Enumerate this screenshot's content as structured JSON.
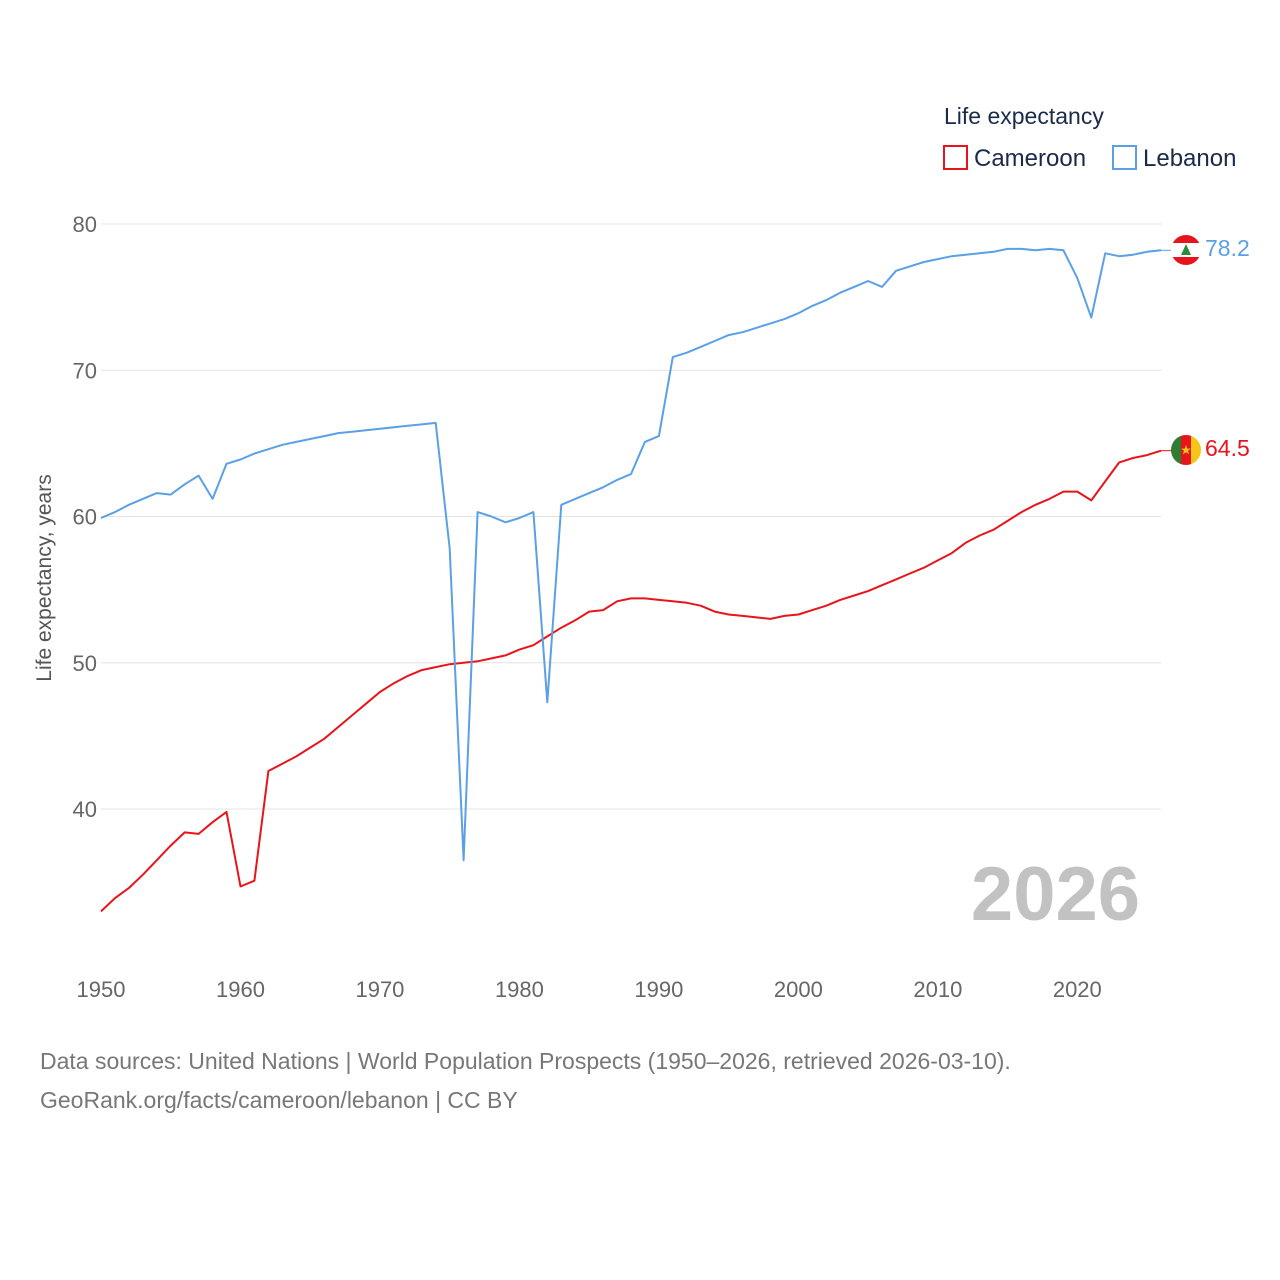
{
  "chart_data": {
    "type": "line",
    "title": "",
    "xlabel": "",
    "ylabel": "Life expectancy, years",
    "legend_title": "Life expectancy",
    "legend_position": "top-right",
    "xlim": [
      1950,
      2026
    ],
    "ylim": [
      32,
      82
    ],
    "x_ticks": [
      1950,
      1960,
      1970,
      1980,
      1990,
      2000,
      2010,
      2020
    ],
    "y_ticks": [
      40,
      50,
      60,
      70,
      80
    ],
    "grid": true,
    "watermark_year": "2026",
    "x": [
      1950,
      1951,
      1952,
      1953,
      1954,
      1955,
      1956,
      1957,
      1958,
      1959,
      1960,
      1961,
      1962,
      1963,
      1964,
      1965,
      1966,
      1967,
      1968,
      1969,
      1970,
      1971,
      1972,
      1973,
      1974,
      1975,
      1976,
      1977,
      1978,
      1979,
      1980,
      1981,
      1982,
      1983,
      1984,
      1985,
      1986,
      1987,
      1988,
      1989,
      1990,
      1991,
      1992,
      1993,
      1994,
      1995,
      1996,
      1997,
      1998,
      1999,
      2000,
      2001,
      2002,
      2003,
      2004,
      2005,
      2006,
      2007,
      2008,
      2009,
      2010,
      2011,
      2012,
      2013,
      2014,
      2015,
      2016,
      2017,
      2018,
      2019,
      2020,
      2021,
      2022,
      2023,
      2024,
      2025,
      2026
    ],
    "series": [
      {
        "name": "Cameroon",
        "color": "#e8141c",
        "flag": "cameroon-flag",
        "end_label": "64.5",
        "values": [
          33.0,
          33.9,
          34.6,
          35.5,
          36.5,
          37.5,
          38.4,
          38.3,
          39.1,
          39.8,
          34.7,
          35.1,
          42.6,
          43.1,
          43.6,
          44.2,
          44.8,
          45.6,
          46.4,
          47.2,
          48.0,
          48.6,
          49.1,
          49.5,
          49.7,
          49.9,
          50.0,
          50.1,
          50.3,
          50.5,
          50.9,
          51.2,
          51.8,
          52.4,
          52.9,
          53.5,
          53.6,
          54.2,
          54.4,
          54.4,
          54.3,
          54.2,
          54.1,
          53.9,
          53.5,
          53.3,
          53.2,
          53.1,
          53.0,
          53.2,
          53.3,
          53.6,
          53.9,
          54.3,
          54.6,
          54.9,
          55.3,
          55.7,
          56.1,
          56.5,
          57.0,
          57.5,
          58.2,
          58.7,
          59.1,
          59.7,
          60.3,
          60.8,
          61.2,
          61.7,
          61.7,
          61.1,
          62.4,
          63.7,
          64.0,
          64.2,
          64.5
        ]
      },
      {
        "name": "Lebanon",
        "color": "#5aa0e6",
        "flag": "lebanon-flag",
        "end_label": "78.2",
        "values": [
          59.9,
          60.3,
          60.8,
          61.2,
          61.6,
          61.5,
          62.2,
          62.8,
          61.2,
          63.6,
          63.9,
          64.3,
          64.6,
          64.9,
          65.1,
          65.3,
          65.5,
          65.7,
          65.8,
          65.9,
          66.0,
          66.1,
          66.2,
          66.3,
          66.4,
          57.8,
          36.5,
          60.3,
          60.0,
          59.6,
          59.9,
          60.3,
          47.3,
          60.8,
          61.2,
          61.6,
          62.0,
          62.5,
          62.9,
          65.1,
          65.5,
          70.9,
          71.2,
          71.6,
          72.0,
          72.4,
          72.6,
          72.9,
          73.2,
          73.5,
          73.9,
          74.4,
          74.8,
          75.3,
          75.7,
          76.1,
          75.7,
          76.8,
          77.1,
          77.4,
          77.6,
          77.8,
          77.9,
          78.0,
          78.1,
          78.3,
          78.3,
          78.2,
          78.3,
          78.2,
          76.3,
          73.6,
          78.0,
          77.8,
          77.9,
          78.1,
          78.2
        ]
      }
    ]
  },
  "source": {
    "line1": "Data sources: United Nations | World Population Prospects (1950–2026, retrieved 2026-03-10).",
    "line2": "GeoRank.org/facts/cameroon/lebanon | CC BY"
  }
}
